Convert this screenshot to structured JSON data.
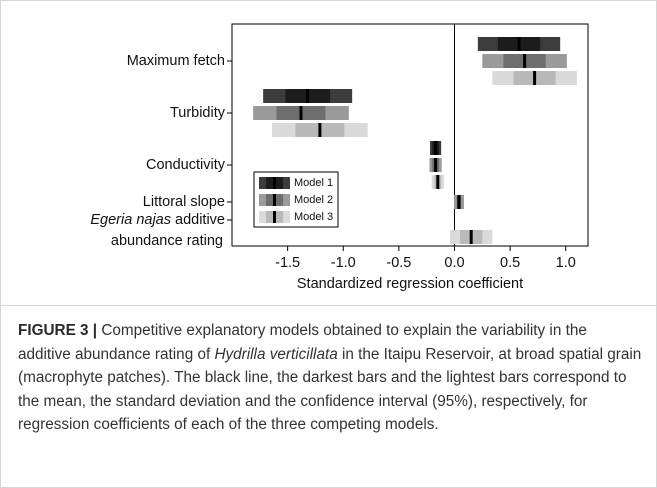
{
  "chart_data": {
    "type": "coefficient-interval",
    "xlabel": "Standardized regression coefficient",
    "categories": [
      "Maximum fetch",
      "Turbidity",
      "Conductivity",
      "Littoral slope",
      "Egeria najas additive abundance rating"
    ],
    "xlim": [
      -2.0,
      1.2
    ],
    "xticks": [
      -1.5,
      {
        "value": -1.0,
        "label": "-1.0"
      },
      -0.5,
      {
        "value": 0.0,
        "label": "0.0"
      },
      0.5,
      {
        "value": 1.0,
        "label": "1.0"
      }
    ],
    "series": [
      {
        "name": "Model 1",
        "colors": {
          "ci": "#3c3c3c",
          "sd": "#1c1c1c",
          "mean": "#000000"
        },
        "values": [
          {
            "mean": 0.58,
            "sd": 0.19,
            "ci": 0.37
          },
          {
            "mean": -1.32,
            "sd": 0.2,
            "ci": 0.4
          },
          {
            "mean": -0.17,
            "sd": 0.03,
            "ci": 0.05
          },
          null,
          null
        ]
      },
      {
        "name": "Model 2",
        "colors": {
          "ci": "#9a9a9a",
          "sd": "#6e6e6e",
          "mean": "#000000"
        },
        "values": [
          {
            "mean": 0.63,
            "sd": 0.19,
            "ci": 0.38
          },
          {
            "mean": -1.38,
            "sd": 0.22,
            "ci": 0.43
          },
          {
            "mean": -0.17,
            "sd": 0.03,
            "ci": 0.055
          },
          {
            "mean": 0.04,
            "sd": 0.02,
            "ci": 0.045
          },
          null
        ]
      },
      {
        "name": "Model 3",
        "colors": {
          "ci": "#dadada",
          "sd": "#b9b9b9",
          "mean": "#000000"
        },
        "values": [
          {
            "mean": 0.72,
            "sd": 0.19,
            "ci": 0.38
          },
          {
            "mean": -1.21,
            "sd": 0.22,
            "ci": 0.43
          },
          {
            "mean": -0.15,
            "sd": 0.03,
            "ci": 0.055
          },
          null,
          {
            "mean": 0.15,
            "sd": 0.1,
            "ci": 0.19
          }
        ]
      }
    ],
    "reference_line": 0.0
  },
  "caption": {
    "label": "FIGURE 3 |",
    "parts": [
      " Competitive explanatory models obtained to explain the variability in the additive abundance rating of ",
      "Hydrilla verticillata",
      " in the Itaipu Reservoir, at broad spatial grain (macrophyte patches). The black line, the darkest bars and the lightest bars correspond to the mean, the standard deviation and the confidence interval (95%), respectively, for regression coefficients of each of the three competing models."
    ]
  }
}
